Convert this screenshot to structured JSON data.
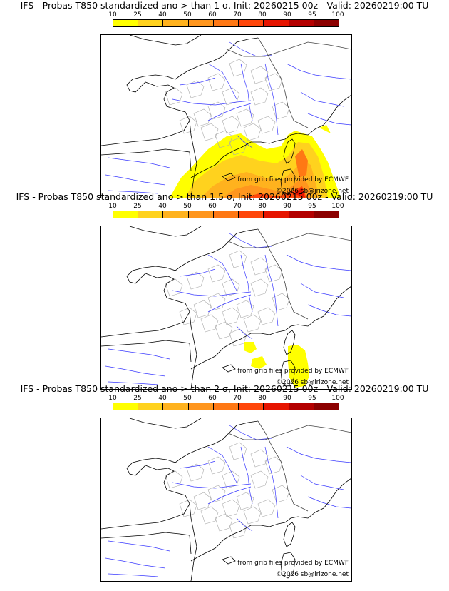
{
  "panels": [
    {
      "title": "IFS - Probas T850  standardized ano > than 1 σ, Init: 20260215 00z - Valid: 20260219:00 TU",
      "source": "from grib files provided by ECMWF",
      "copyright": "©2026 sb@irizone.net"
    },
    {
      "title": "IFS - Probas T850  standardized ano > than 1.5 σ, Init: 20260215 00z - Valid: 20260219:00 TU",
      "source": "from grib files provided by ECMWF",
      "copyright": "©2026 sb@irizone.net"
    },
    {
      "title": "IFS - Probas T850  standardized ano > than 2 σ, Init: 20260215 00z - Valid: 20260219:00 TU",
      "source": "from grib files provided by ECMWF",
      "copyright": "©2026 sb@irizone.net"
    }
  ],
  "legend": {
    "ticks": [
      "10",
      "25",
      "40",
      "50",
      "60",
      "70",
      "80",
      "90",
      "95",
      "100"
    ],
    "colors": [
      "#ffff00",
      "#ffd21e",
      "#ffb21e",
      "#ff961e",
      "#ff7814",
      "#ff460a",
      "#e61400",
      "#b40000",
      "#8c0000"
    ]
  }
}
